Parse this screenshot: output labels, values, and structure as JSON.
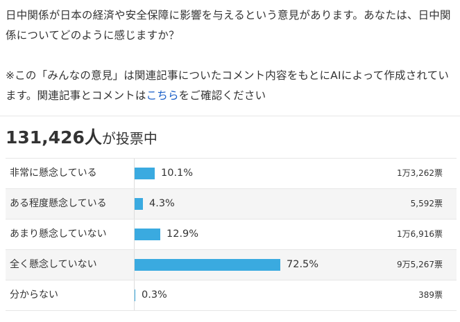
{
  "question": {
    "line1": "日中関係が日本の経済や安全保障に影響を与えるという意見があります。あなたは、日中関係についてどのように感じますか？",
    "note_before_link": "※この「みんなの意見」は関連記事についたコメント内容をもとにAIによって作成されています。関連記事とコメントは",
    "link_text": "こちら",
    "note_after_link": "をご確認ください"
  },
  "total": {
    "count": "131,426人",
    "suffix": "が投票中"
  },
  "options": [
    {
      "label": "非常に懸念している",
      "percent_text": "10.1%",
      "percent": 10.1,
      "votes": "1万3,262票"
    },
    {
      "label": "ある程度懸念している",
      "percent_text": "4.3%",
      "percent": 4.3,
      "votes": "5,592票"
    },
    {
      "label": "あまり懸念していない",
      "percent_text": "12.9%",
      "percent": 12.9,
      "votes": "1万6,916票"
    },
    {
      "label": "全く懸念していない",
      "percent_text": "72.5%",
      "percent": 72.5,
      "votes": "9万5,267票"
    },
    {
      "label": "分からない",
      "percent_text": "0.3%",
      "percent": 0.3,
      "votes": "389票"
    }
  ],
  "colors": {
    "bar": "#3aaae0",
    "link": "#1a5fc8",
    "alt_row": "#f5f5f5"
  }
}
